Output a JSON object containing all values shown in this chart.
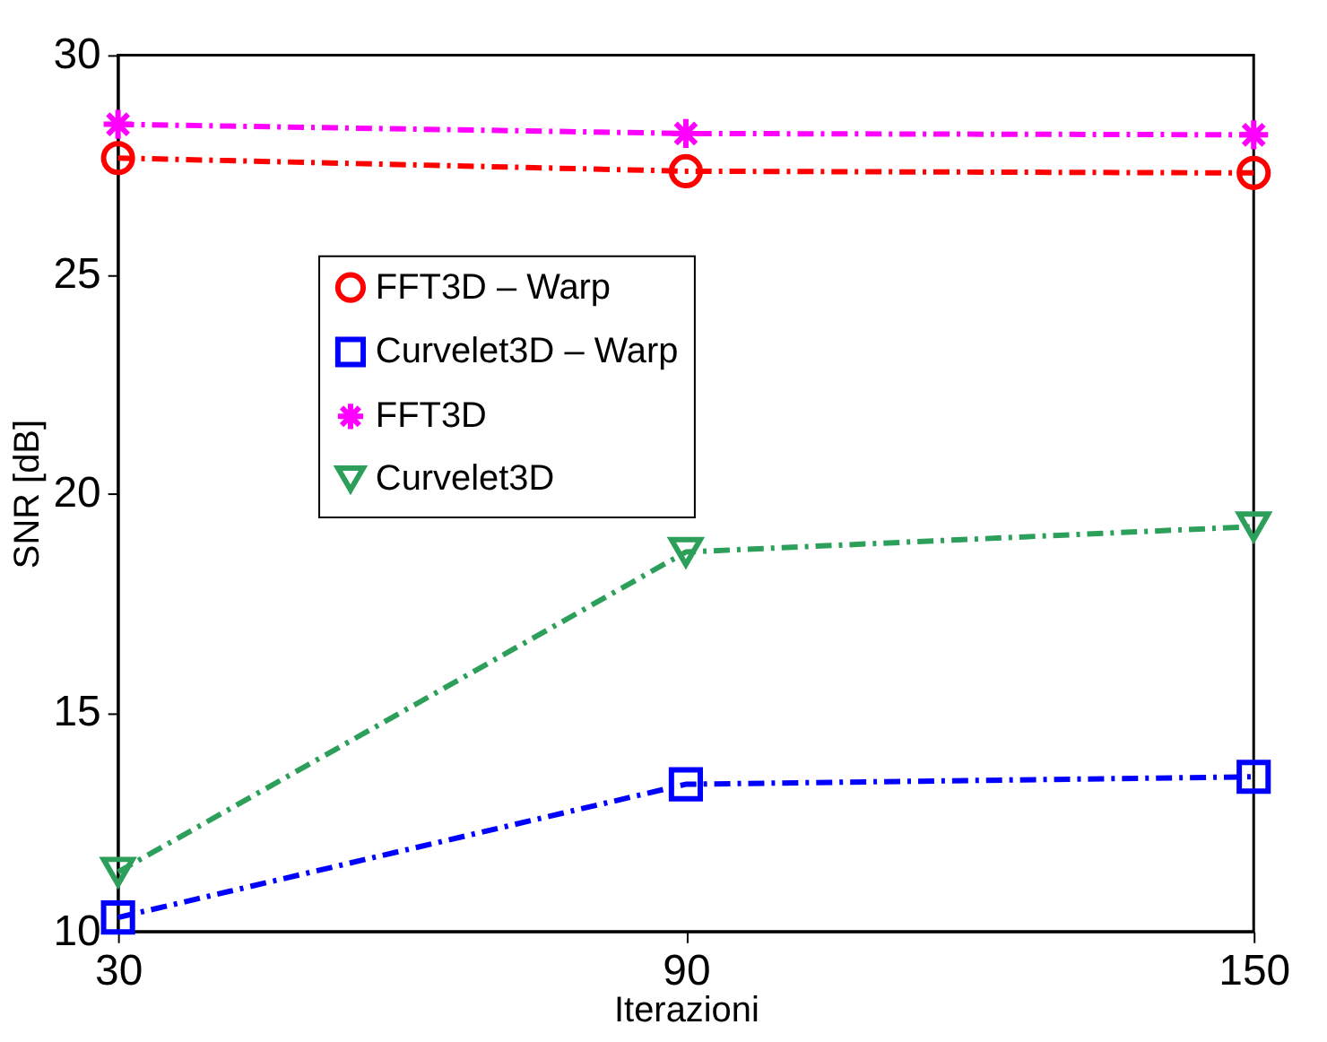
{
  "chart_data": {
    "type": "line",
    "xlabel": "Iterazioni",
    "ylabel": "SNR [dB]",
    "x": [
      30,
      90,
      150
    ],
    "xlim": [
      30,
      150
    ],
    "xticks": [
      30,
      90,
      150
    ],
    "ylim": [
      10,
      30
    ],
    "yticks": [
      10,
      15,
      20,
      25,
      30
    ],
    "grid": false,
    "legend": "top left",
    "line_style": "dashed",
    "series": [
      {
        "name": "FFT3D – Warp",
        "color": "#ff0000",
        "marker": "circle",
        "values": [
          27.65,
          27.35,
          27.31
        ]
      },
      {
        "name": "Curvelet3D – Warp",
        "color": "#0000ff",
        "marker": "square",
        "values": [
          10.32,
          13.36,
          13.53
        ]
      },
      {
        "name": "FFT3D",
        "color": "#ff00ff",
        "marker": "cross",
        "values": [
          28.42,
          28.21,
          28.18
        ]
      },
      {
        "name": "Curvelet3D",
        "color": "#2ca05a",
        "marker": "triangle",
        "values": [
          11.36,
          18.66,
          19.24
        ]
      }
    ]
  }
}
